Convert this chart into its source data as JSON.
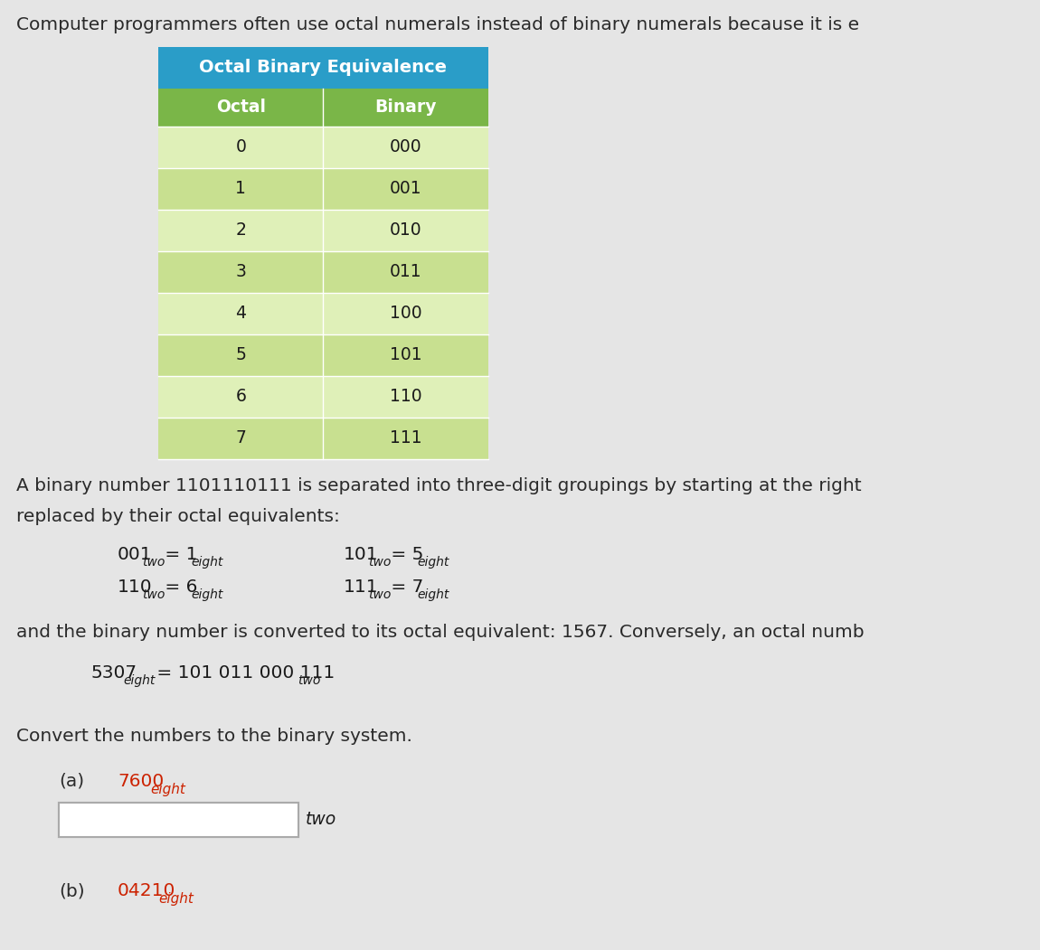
{
  "bg_color": "#e5e5e5",
  "header_top_color": "#2a9dc8",
  "header_bottom_color": "#7ab648",
  "row_color_light": "#dff0b8",
  "row_color_dark": "#c8e090",
  "table_title": "Octal Binary Equivalence",
  "col_headers": [
    "Octal",
    "Binary"
  ],
  "octal_vals": [
    "0",
    "1",
    "2",
    "3",
    "4",
    "5",
    "6",
    "7"
  ],
  "binary_vals": [
    "000",
    "001",
    "010",
    "011",
    "100",
    "101",
    "110",
    "111"
  ],
  "top_text": "Computer programmers often use octal numerals instead of binary numerals because it is e",
  "para1_line1": "A binary number 1101110111 is separated into three-digit groupings by starting at the right",
  "para1_line2": "replaced by their octal equivalents:",
  "para2": "and the binary number is converted to its octal equivalent: 1567. Conversely, an octal numb",
  "convert_text": "Convert the numbers to the binary system.",
  "part_a_label": "(a)",
  "part_a_val": "7600",
  "part_a_sub": "eight",
  "part_b_label": "(b)",
  "part_b_val": "04210",
  "part_b_sub": "eight",
  "answer_label": "two",
  "red_color": "#cc2200",
  "text_color": "#2a2a2a",
  "dark_text": "#1a1a1a"
}
